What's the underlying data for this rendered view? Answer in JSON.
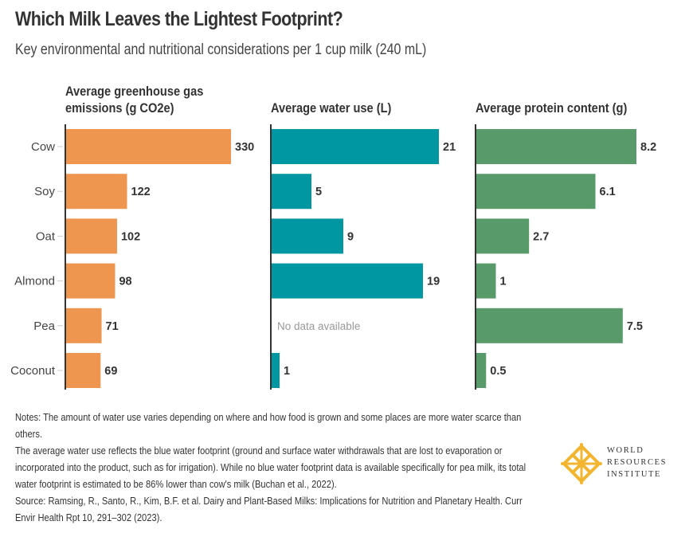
{
  "header": {
    "title": "Which Milk Leaves the Lightest Footprint?",
    "subtitle": "Key environmental and nutritional considerations per 1 cup milk (240 mL)"
  },
  "chart_data": {
    "type": "bar",
    "orientation": "horizontal",
    "title": "Which Milk Leaves the Lightest Footprint?",
    "subtitle": "Key environmental and nutritional considerations per 1 cup milk (240 mL)",
    "categories": [
      "Cow",
      "Soy",
      "Oat",
      "Almond",
      "Pea",
      "Coconut"
    ],
    "panels": [
      {
        "name": "Average greenhouse gas emissions (g CO2e)",
        "title_lines": [
          "Average greenhouse gas",
          "emissions (g CO2e)"
        ],
        "color": "#EE964F",
        "values": [
          330,
          122,
          102,
          98,
          71,
          69
        ],
        "labels": [
          "330",
          "122",
          "102",
          "98",
          "71",
          "69"
        ],
        "xlim": [
          0,
          330
        ]
      },
      {
        "name": "Average water use (L)",
        "title_lines": [
          "Average water use (L)"
        ],
        "color": "#0097A3",
        "values": [
          21,
          5,
          9,
          19,
          null,
          1
        ],
        "labels": [
          "21",
          "5",
          "9",
          "19",
          "",
          "1"
        ],
        "missing_label": "No data available",
        "xlim": [
          0,
          21
        ]
      },
      {
        "name": "Average protein content (g)",
        "title_lines": [
          "Average protein content (g)"
        ],
        "color": "#599A6A",
        "values": [
          8.2,
          6.1,
          2.7,
          1,
          7.5,
          0.5
        ],
        "labels": [
          "8.2",
          "6.1",
          "2.7",
          "1",
          "7.5",
          "0.5"
        ],
        "xlim": [
          0,
          8.2
        ]
      }
    ],
    "grid": false,
    "legend": "none"
  },
  "notes": {
    "line1": "Notes: The amount of water use varies depending on where and how food is grown and some places are more water scarce than others.",
    "line2": "The average water use reflects the blue water footprint (ground and surface water withdrawals that are lost to evaporation or incorporated into the product, such as for irrigation). While no blue water footprint data is available specifically for pea milk, its total water footprint is estimated to be 86% lower than cow's milk (Buchan et al., 2022).",
    "line3": "Source: Ramsing, R., Santo, R., Kim, B.F. et al. Dairy and Plant-Based Milks: Implications for Nutrition and Planetary Health. Curr Envir Health Rpt 10, 291–302 (2023)."
  },
  "logo": {
    "name": "World Resources Institute",
    "lines": [
      "WORLD",
      "RESOURCES",
      "INSTITUTE"
    ],
    "color": "#F3B530"
  }
}
